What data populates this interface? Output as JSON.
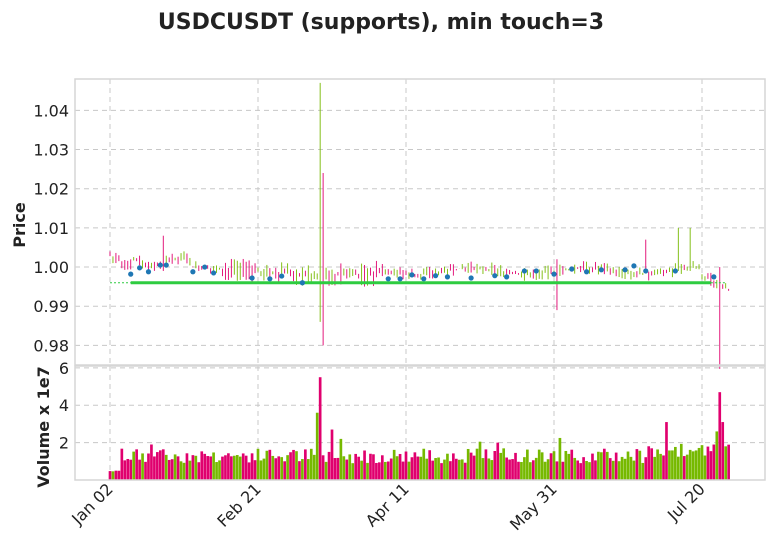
{
  "chart_data": {
    "type": "candlestick",
    "title": "USDCUSDT (supports), min touch=3",
    "colors": {
      "up": "#76b900",
      "down": "#e0006e",
      "support": "#2ecc40",
      "touch": "#1f77b4",
      "support_small": "#2ecc40"
    },
    "grid": true,
    "x_ticks": [
      {
        "label": "Jan 02",
        "index": 0
      },
      {
        "label": "Feb 21",
        "index": 50
      },
      {
        "label": "Apr 11",
        "index": 100
      },
      {
        "label": "May 31",
        "index": 150
      },
      {
        "label": "Jul 20",
        "index": 200
      }
    ],
    "bars": 210,
    "price_panel": {
      "ylabel": "Price",
      "ylim": [
        0.975,
        1.048
      ],
      "yticks": [
        0.98,
        0.99,
        1.0,
        1.01,
        1.02,
        1.03,
        1.04
      ],
      "ytick_labels": [
        "0.98",
        "0.99",
        "1.00",
        "1.01",
        "1.02",
        "1.03",
        "1.04"
      ],
      "support_level": 0.996,
      "support_range": [
        7,
        203
      ],
      "support_small_range": [
        0,
        7
      ],
      "spikes": [
        {
          "index": 71,
          "high": 1.047,
          "low": 0.986,
          "up": true
        },
        {
          "index": 72,
          "high": 1.024,
          "low": 0.98,
          "up": false
        },
        {
          "index": 151,
          "high": 1.002,
          "low": 0.989,
          "up": false
        },
        {
          "index": 206,
          "high": 1.0,
          "low": 0.974,
          "up": false
        },
        {
          "index": 192,
          "high": 1.01,
          "low": 0.999,
          "up": true
        },
        {
          "index": 196,
          "high": 1.01,
          "low": 0.999,
          "up": true
        },
        {
          "index": 181,
          "high": 1.007,
          "low": 0.999,
          "up": false
        },
        {
          "index": 18,
          "high": 1.008,
          "low": 0.999,
          "up": false
        }
      ],
      "touch_points": [
        {
          "index": 7,
          "price": 0.9982
        },
        {
          "index": 10,
          "price": 0.9998
        },
        {
          "index": 13,
          "price": 0.9988
        },
        {
          "index": 17,
          "price": 1.0005
        },
        {
          "index": 19,
          "price": 1.0005
        },
        {
          "index": 28,
          "price": 0.9988
        },
        {
          "index": 32,
          "price": 1.0
        },
        {
          "index": 35,
          "price": 0.9985
        },
        {
          "index": 48,
          "price": 0.9972
        },
        {
          "index": 54,
          "price": 0.997
        },
        {
          "index": 58,
          "price": 0.9977
        },
        {
          "index": 65,
          "price": 0.996
        },
        {
          "index": 94,
          "price": 0.997
        },
        {
          "index": 98,
          "price": 0.997
        },
        {
          "index": 102,
          "price": 0.998
        },
        {
          "index": 106,
          "price": 0.997
        },
        {
          "index": 110,
          "price": 0.9978
        },
        {
          "index": 114,
          "price": 0.9975
        },
        {
          "index": 122,
          "price": 0.9972
        },
        {
          "index": 130,
          "price": 0.9978
        },
        {
          "index": 134,
          "price": 0.9975
        },
        {
          "index": 140,
          "price": 0.999
        },
        {
          "index": 144,
          "price": 0.999
        },
        {
          "index": 150,
          "price": 0.9982
        },
        {
          "index": 156,
          "price": 0.9995
        },
        {
          "index": 161,
          "price": 0.9988
        },
        {
          "index": 166,
          "price": 0.9993
        },
        {
          "index": 174,
          "price": 0.9993
        },
        {
          "index": 177,
          "price": 1.0003
        },
        {
          "index": 181,
          "price": 0.999
        },
        {
          "index": 191,
          "price": 0.999
        },
        {
          "index": 204,
          "price": 0.9975
        }
      ]
    },
    "volume_panel": {
      "ylabel": "Volume x 1e7",
      "ylim": [
        0,
        6.1
      ],
      "yticks": [
        2,
        4,
        6
      ],
      "ytick_labels": [
        "2",
        "4",
        "6"
      ],
      "spikes": [
        {
          "index": 71,
          "value": 5.5,
          "up": false
        },
        {
          "index": 70,
          "value": 3.6,
          "up": true
        },
        {
          "index": 75,
          "value": 2.7,
          "up": false
        },
        {
          "index": 78,
          "value": 2.2,
          "up": true
        },
        {
          "index": 152,
          "value": 2.25,
          "up": true
        },
        {
          "index": 188,
          "value": 3.1,
          "up": false
        },
        {
          "index": 206,
          "value": 4.7,
          "up": false
        },
        {
          "index": 205,
          "value": 2.6,
          "up": true
        },
        {
          "index": 207,
          "value": 3.1,
          "up": false
        },
        {
          "index": 14,
          "value": 1.9,
          "up": false
        },
        {
          "index": 125,
          "value": 2.05,
          "up": true
        },
        {
          "index": 131,
          "value": 2.0,
          "up": false
        }
      ]
    }
  }
}
